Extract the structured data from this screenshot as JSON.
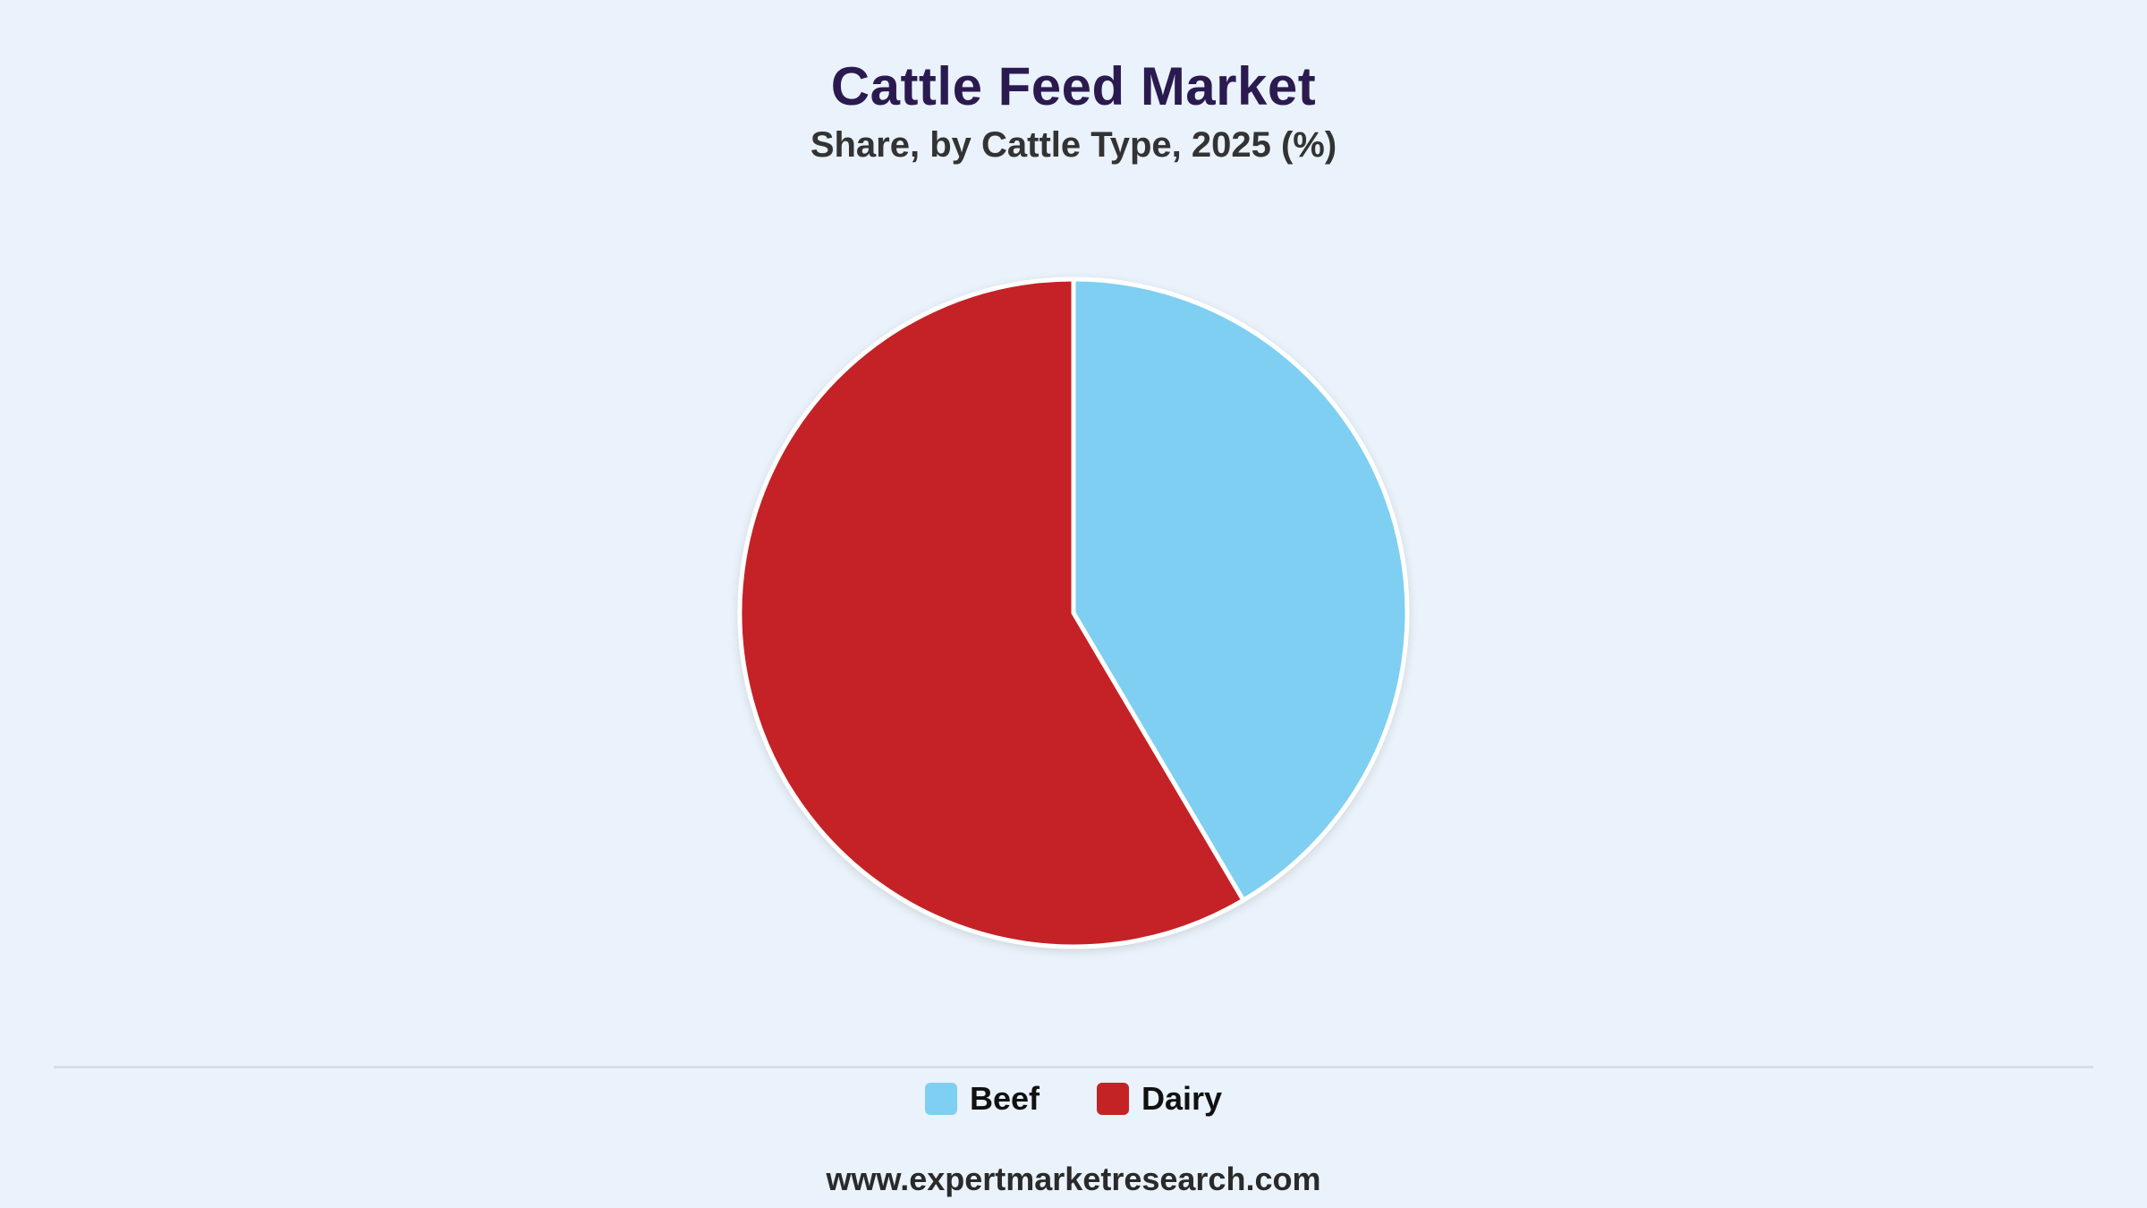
{
  "chart_data": {
    "type": "pie",
    "title": "Cattle Feed Market",
    "subtitle": "Share, by Cattle Type, 2025 (%)",
    "categories": [
      "Beef",
      "Dairy"
    ],
    "values": [
      41.5,
      58.5
    ],
    "colors": [
      "#7ecff2",
      "#c42326"
    ],
    "legend_position": "bottom",
    "start_angle": "12 o'clock, clockwise"
  },
  "legend": {
    "items": [
      {
        "label": "Beef",
        "color": "#7ecff2"
      },
      {
        "label": "Dairy",
        "color": "#c42326"
      }
    ]
  },
  "footer": {
    "source": "www.expertmarketresearch.com"
  }
}
